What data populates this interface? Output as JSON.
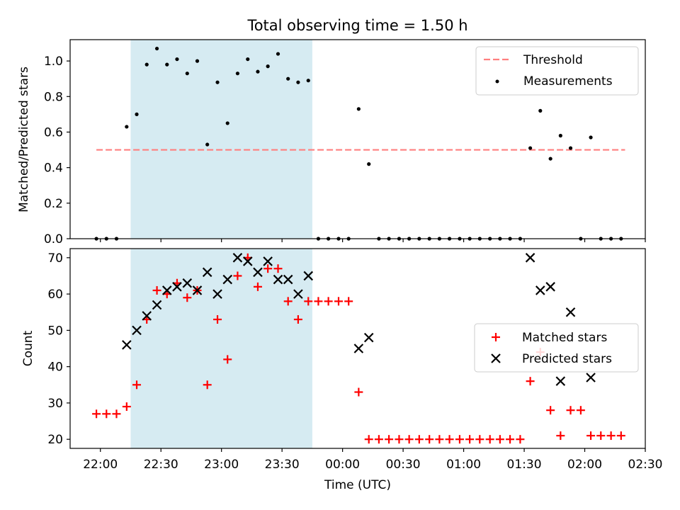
{
  "chart_data": [
    {
      "type": "scatter",
      "title": "Total observing time = 1.50 h",
      "ylabel": "Matched/Predicted stars",
      "xlabel": "",
      "x_unit": "hours since 22:00 UTC",
      "xlim": [
        -0.25,
        4.5
      ],
      "ylim": [
        0,
        1.12
      ],
      "yticks": [
        "0.0",
        "0.2",
        "0.4",
        "0.6",
        "0.8",
        "1.0"
      ],
      "shaded_interval": [
        "22:15",
        "23:45"
      ],
      "legend_position": "upper right",
      "legend": [
        "Threshold",
        "Measurements"
      ],
      "threshold": {
        "name": "Threshold",
        "value": 0.5,
        "x_range": [
          -0.033,
          4.333
        ],
        "color": "#ff7f7f",
        "style": "dashed"
      },
      "series": [
        {
          "name": "Measurements",
          "color": "#000000",
          "marker": "dot",
          "points": [
            [
              -0.033,
              0.0
            ],
            [
              0.05,
              0.0
            ],
            [
              0.133,
              0.0
            ],
            [
              0.217,
              0.63
            ],
            [
              0.3,
              0.7
            ],
            [
              0.383,
              0.98
            ],
            [
              0.467,
              1.07
            ],
            [
              0.55,
              0.98
            ],
            [
              0.633,
              1.01
            ],
            [
              0.717,
              0.93
            ],
            [
              0.8,
              1.0
            ],
            [
              0.883,
              0.53
            ],
            [
              0.967,
              0.88
            ],
            [
              1.05,
              0.65
            ],
            [
              1.133,
              0.93
            ],
            [
              1.217,
              1.01
            ],
            [
              1.3,
              0.94
            ],
            [
              1.383,
              0.97
            ],
            [
              1.467,
              1.04
            ],
            [
              1.55,
              0.9
            ],
            [
              1.633,
              0.88
            ],
            [
              1.717,
              0.89
            ],
            [
              1.8,
              0.0
            ],
            [
              1.883,
              0.0
            ],
            [
              1.967,
              0.0
            ],
            [
              2.05,
              0.0
            ],
            [
              2.133,
              0.73
            ],
            [
              2.217,
              0.42
            ],
            [
              2.3,
              0.0
            ],
            [
              2.383,
              0.0
            ],
            [
              2.467,
              0.0
            ],
            [
              2.55,
              0.0
            ],
            [
              2.633,
              0.0
            ],
            [
              2.717,
              0.0
            ],
            [
              2.8,
              0.0
            ],
            [
              2.883,
              0.0
            ],
            [
              2.967,
              0.0
            ],
            [
              3.05,
              0.0
            ],
            [
              3.133,
              0.0
            ],
            [
              3.217,
              0.0
            ],
            [
              3.3,
              0.0
            ],
            [
              3.383,
              0.0
            ],
            [
              3.467,
              0.0
            ],
            [
              3.55,
              0.51
            ],
            [
              3.633,
              0.72
            ],
            [
              3.717,
              0.45
            ],
            [
              3.8,
              0.58
            ],
            [
              3.883,
              0.51
            ],
            [
              3.967,
              0.0
            ],
            [
              4.05,
              0.57
            ],
            [
              4.133,
              0.0
            ],
            [
              4.217,
              0.0
            ],
            [
              4.3,
              0.0
            ]
          ]
        }
      ]
    },
    {
      "type": "scatter",
      "title": "",
      "ylabel": "Count",
      "xlabel": "Time (UTC)",
      "x_unit": "hours since 22:00 UTC",
      "xlim": [
        -0.25,
        4.5
      ],
      "ylim": [
        17.5,
        72.5
      ],
      "yticks": [
        "20",
        "30",
        "40",
        "50",
        "60",
        "70"
      ],
      "xticks": [
        "22:00",
        "22:30",
        "23:00",
        "23:30",
        "00:00",
        "00:30",
        "01:00",
        "01:30",
        "02:00",
        "02:30"
      ],
      "shaded_interval": [
        "22:15",
        "23:45"
      ],
      "legend_position": "center right",
      "legend": [
        "Matched stars",
        "Predicted stars"
      ],
      "series": [
        {
          "name": "Matched stars",
          "color": "#ff0000",
          "marker": "plus",
          "points": [
            [
              -0.033,
              27
            ],
            [
              0.05,
              27
            ],
            [
              0.133,
              27
            ],
            [
              0.217,
              29
            ],
            [
              0.3,
              35
            ],
            [
              0.383,
              53
            ],
            [
              0.467,
              61
            ],
            [
              0.55,
              60
            ],
            [
              0.633,
              63
            ],
            [
              0.717,
              59
            ],
            [
              0.8,
              61
            ],
            [
              0.883,
              35
            ],
            [
              0.967,
              53
            ],
            [
              1.05,
              42
            ],
            [
              1.133,
              65
            ],
            [
              1.217,
              70
            ],
            [
              1.3,
              62
            ],
            [
              1.383,
              67
            ],
            [
              1.467,
              67
            ],
            [
              1.55,
              58
            ],
            [
              1.633,
              53
            ],
            [
              1.717,
              58
            ],
            [
              1.8,
              58
            ],
            [
              1.883,
              58
            ],
            [
              1.967,
              58
            ],
            [
              2.05,
              58
            ],
            [
              2.133,
              33
            ],
            [
              2.217,
              20
            ],
            [
              2.3,
              20
            ],
            [
              2.383,
              20
            ],
            [
              2.467,
              20
            ],
            [
              2.55,
              20
            ],
            [
              2.633,
              20
            ],
            [
              2.717,
              20
            ],
            [
              2.8,
              20
            ],
            [
              2.883,
              20
            ],
            [
              2.967,
              20
            ],
            [
              3.05,
              20
            ],
            [
              3.133,
              20
            ],
            [
              3.217,
              20
            ],
            [
              3.3,
              20
            ],
            [
              3.383,
              20
            ],
            [
              3.467,
              20
            ],
            [
              3.55,
              36
            ],
            [
              3.633,
              44
            ],
            [
              3.717,
              28
            ],
            [
              3.8,
              21
            ],
            [
              3.883,
              28
            ],
            [
              3.967,
              28
            ],
            [
              4.05,
              21
            ],
            [
              4.133,
              21
            ],
            [
              4.217,
              21
            ],
            [
              4.3,
              21
            ]
          ]
        },
        {
          "name": "Predicted stars",
          "color": "#000000",
          "marker": "x",
          "points": [
            [
              0.217,
              46
            ],
            [
              0.3,
              50
            ],
            [
              0.383,
              54
            ],
            [
              0.467,
              57
            ],
            [
              0.55,
              61
            ],
            [
              0.633,
              62
            ],
            [
              0.717,
              63
            ],
            [
              0.8,
              61
            ],
            [
              0.883,
              66
            ],
            [
              0.967,
              60
            ],
            [
              1.05,
              64
            ],
            [
              1.133,
              70
            ],
            [
              1.217,
              69
            ],
            [
              1.3,
              66
            ],
            [
              1.383,
              69
            ],
            [
              1.467,
              64
            ],
            [
              1.55,
              64
            ],
            [
              1.633,
              60
            ],
            [
              1.717,
              65
            ],
            [
              2.133,
              45
            ],
            [
              2.217,
              48
            ],
            [
              3.55,
              70
            ],
            [
              3.633,
              61
            ],
            [
              3.717,
              62
            ],
            [
              3.8,
              36
            ],
            [
              3.883,
              55
            ],
            [
              4.05,
              37
            ]
          ]
        }
      ]
    }
  ]
}
